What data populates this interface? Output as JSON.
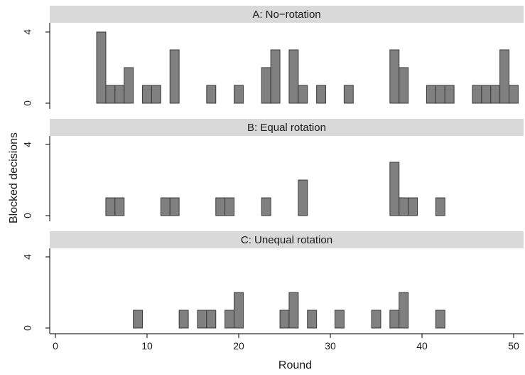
{
  "chart_data": {
    "type": "bar",
    "xlabel": "Round",
    "ylabel": "Blocked decisions",
    "xlim": [
      -0.5,
      50.5
    ],
    "xticks": [
      "0",
      "10",
      "20",
      "30",
      "40",
      "50"
    ],
    "ylim": [
      0,
      4.4
    ],
    "yticks": [
      "0",
      "4"
    ],
    "grid": false,
    "colors": {
      "bar_fill": "#808080",
      "bar_stroke": "#3a3a3a",
      "strip_bg": "#d9d9d9",
      "axis": "#000000"
    },
    "panels": [
      {
        "title": "A: No−rotation",
        "x": [
          5,
          6,
          7,
          8,
          10,
          11,
          13,
          17,
          20,
          23,
          24,
          26,
          27,
          29,
          32,
          37,
          38,
          41,
          42,
          43,
          46,
          47,
          48,
          49,
          50
        ],
        "values": [
          4,
          1,
          1,
          2,
          1,
          1,
          3,
          1,
          1,
          2,
          3,
          3,
          1,
          1,
          1,
          3,
          2,
          1,
          1,
          1,
          1,
          1,
          1,
          3,
          1
        ]
      },
      {
        "title": "B: Equal rotation",
        "x": [
          6,
          7,
          12,
          13,
          18,
          19,
          23,
          27,
          37,
          38,
          39,
          42
        ],
        "values": [
          1,
          1,
          1,
          1,
          1,
          1,
          1,
          2,
          3,
          1,
          1,
          1
        ]
      },
      {
        "title": "C: Unequal rotation",
        "x": [
          9,
          14,
          16,
          17,
          19,
          20,
          25,
          26,
          28,
          31,
          35,
          37,
          38,
          42
        ],
        "values": [
          1,
          1,
          1,
          1,
          1,
          2,
          1,
          2,
          1,
          1,
          1,
          1,
          2,
          1
        ]
      }
    ]
  }
}
